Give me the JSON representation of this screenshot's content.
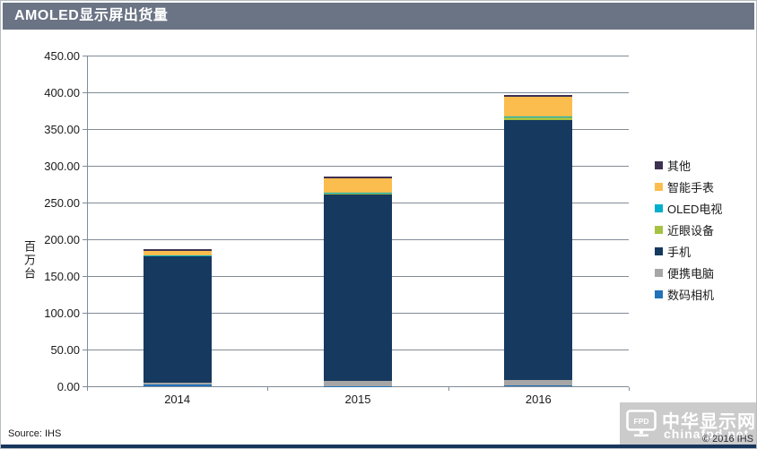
{
  "title": "AMOLED显示屏出货量",
  "footer": {
    "source": "Source: IHS",
    "copyright": "© 2016  IHS"
  },
  "watermark": {
    "logo_text": "FPD",
    "site_name": "中华显示网",
    "site_url": "chinafpd.net"
  },
  "colors": {
    "titlebar": "#6b7485",
    "bottombar": "#16365c",
    "gridline": "#808c96",
    "watermark_bg": "#cbcbcb"
  },
  "chart_data": {
    "type": "bar",
    "stacked": true,
    "title": "AMOLED显示屏出货量",
    "ylabel": "百万台",
    "ylim": [
      0,
      450
    ],
    "ytick_step": 50,
    "ytick_format": "0.00",
    "grid": true,
    "legend_position": "right",
    "categories": [
      "2014",
      "2015",
      "2016"
    ],
    "series_bottom_to_top": [
      {
        "name": "数码相机",
        "color": "#2272b8",
        "values": [
          3,
          0.5,
          1
        ]
      },
      {
        "name": "便携电脑",
        "color": "#a6a6a6",
        "values": [
          2,
          7,
          7.5
        ]
      },
      {
        "name": "手机",
        "color": "#15395f",
        "values": [
          172,
          253,
          354
        ]
      },
      {
        "name": "近眼设备",
        "color": "#a6c143",
        "values": [
          1,
          2.5,
          3.5
        ]
      },
      {
        "name": "OLED电视",
        "color": "#00aece",
        "values": [
          0.3,
          0.5,
          1.5
        ]
      },
      {
        "name": "智能手表",
        "color": "#fbbd4e",
        "values": [
          6,
          20,
          26
        ]
      },
      {
        "name": "其他",
        "color": "#3f3152",
        "values": [
          2,
          2,
          2.5
        ]
      }
    ],
    "totals": [
      186.3,
      285.5,
      396
    ],
    "legend_top_to_bottom": [
      "其他",
      "智能手表",
      "OLED电视",
      "近眼设备",
      "手机",
      "便携电脑",
      "数码相机"
    ]
  }
}
